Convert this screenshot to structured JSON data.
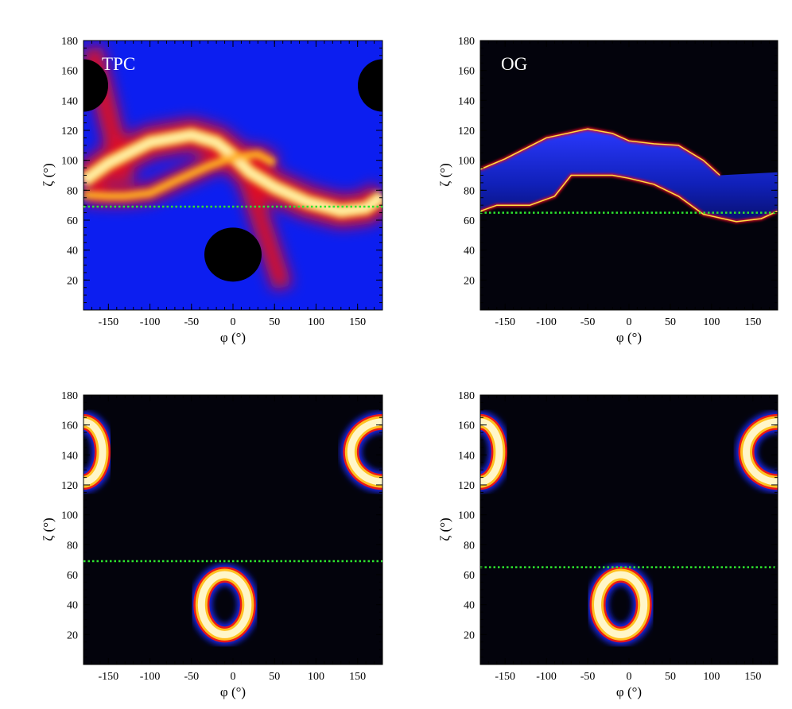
{
  "chart_data": [
    {
      "type": "heatmap",
      "panel_label": "TPC",
      "background": "blue",
      "xlabel": "φ (°)",
      "ylabel": "ζ (°)",
      "xlim": [
        -180,
        180
      ],
      "ylim": [
        0,
        180
      ],
      "xticks": [
        "-150",
        "-100",
        "-50",
        "0",
        "50",
        "100",
        "150"
      ],
      "yticks": [
        "20",
        "40",
        "60",
        "80",
        "100",
        "120",
        "140",
        "160",
        "180"
      ],
      "observer_line_zeta": 69,
      "caustic_curve": [
        [
          -180,
          86
        ],
        [
          -150,
          98
        ],
        [
          -100,
          112
        ],
        [
          -50,
          117
        ],
        [
          -20,
          112
        ],
        [
          0,
          103
        ],
        [
          20,
          92
        ],
        [
          50,
          82
        ],
        [
          90,
          72
        ],
        [
          130,
          66
        ],
        [
          160,
          68
        ],
        [
          180,
          76
        ]
      ],
      "secondary_curve": [
        [
          -180,
          77
        ],
        [
          -150,
          76
        ],
        [
          -130,
          76
        ],
        [
          -100,
          78
        ],
        [
          -70,
          86
        ],
        [
          -30,
          96
        ],
        [
          0,
          102
        ],
        [
          30,
          104
        ],
        [
          50,
          98
        ]
      ],
      "holes": [
        [
          0,
          37
        ],
        [
          -180,
          150
        ],
        [
          180,
          150
        ]
      ]
    },
    {
      "type": "heatmap",
      "panel_label": "OG",
      "background": "black",
      "xlabel": "φ (°)",
      "ylabel": "ζ (°)",
      "xlim": [
        -180,
        180
      ],
      "ylim": [
        0,
        180
      ],
      "xticks": [
        "-150",
        "-100",
        "-50",
        "0",
        "50",
        "100",
        "150"
      ],
      "yticks": [
        "20",
        "40",
        "60",
        "80",
        "100",
        "120",
        "140",
        "160",
        "180"
      ],
      "observer_line_zeta": 65,
      "upper_edge": [
        [
          -180,
          94
        ],
        [
          -150,
          101
        ],
        [
          -100,
          115
        ],
        [
          -50,
          121
        ],
        [
          -20,
          118
        ],
        [
          0,
          113
        ],
        [
          30,
          111
        ],
        [
          60,
          110
        ],
        [
          90,
          100
        ],
        [
          110,
          90
        ],
        [
          180,
          92
        ]
      ],
      "lower_edge": [
        [
          -180,
          66
        ],
        [
          -160,
          70
        ],
        [
          -120,
          70
        ],
        [
          -90,
          76
        ],
        [
          -70,
          90
        ],
        [
          -40,
          90
        ],
        [
          -20,
          90
        ],
        [
          0,
          88
        ],
        [
          30,
          84
        ],
        [
          60,
          76
        ],
        [
          90,
          64
        ],
        [
          130,
          59
        ],
        [
          160,
          61
        ],
        [
          180,
          66
        ]
      ]
    },
    {
      "type": "heatmap",
      "panel_label": "",
      "background": "black",
      "xlabel": "φ (°)",
      "ylabel": "ζ (°)",
      "xlim": [
        -180,
        180
      ],
      "ylim": [
        0,
        180
      ],
      "xticks": [
        "-150",
        "-100",
        "-50",
        "0",
        "50",
        "100",
        "150"
      ],
      "yticks": [
        "20",
        "40",
        "60",
        "80",
        "100",
        "120",
        "140",
        "160",
        "180"
      ],
      "observer_line_zeta": 69,
      "rings": [
        [
          -10,
          40,
          28,
          20
        ],
        [
          180,
          142,
          38,
          20
        ],
        [
          -180,
          142,
          23,
          20
        ]
      ]
    },
    {
      "type": "heatmap",
      "panel_label": "",
      "background": "black",
      "xlabel": "φ (°)",
      "ylabel": "ζ (°)",
      "xlim": [
        -180,
        180
      ],
      "ylim": [
        0,
        180
      ],
      "xticks": [
        "-150",
        "-100",
        "-50",
        "0",
        "50",
        "100",
        "150"
      ],
      "yticks": [
        "20",
        "40",
        "60",
        "80",
        "100",
        "120",
        "140",
        "160",
        "180"
      ],
      "observer_line_zeta": 65,
      "rings": [
        [
          -10,
          40,
          28,
          20
        ],
        [
          180,
          142,
          38,
          20
        ],
        [
          -180,
          142,
          23,
          20
        ]
      ]
    }
  ]
}
